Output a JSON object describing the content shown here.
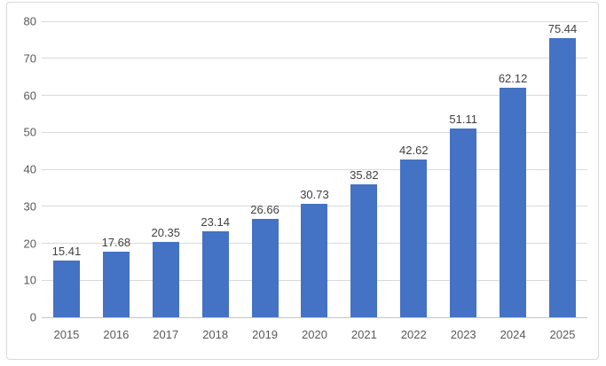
{
  "chart_data": {
    "type": "bar",
    "title": "",
    "xlabel": "",
    "ylabel": "",
    "categories": [
      "2015",
      "2016",
      "2017",
      "2018",
      "2019",
      "2020",
      "2021",
      "2022",
      "2023",
      "2024",
      "2025"
    ],
    "values": [
      15.41,
      17.68,
      20.35,
      23.14,
      26.66,
      30.73,
      35.82,
      42.62,
      51.11,
      62.12,
      75.44
    ],
    "data_labels": [
      "15.41",
      "17.68",
      "20.35",
      "23.14",
      "26.66",
      "30.73",
      "35.82",
      "42.62",
      "51.11",
      "62.12",
      "75.44"
    ],
    "ylim": [
      0,
      80
    ],
    "ytick_step": 10,
    "ytick_labels": [
      "0",
      "10",
      "20",
      "30",
      "40",
      "50",
      "60",
      "70",
      "80"
    ],
    "grid": true,
    "legend": "none",
    "colors": {
      "bar": "#4472C4",
      "gridline": "#D9D9D9",
      "axis_line": "#C6C6C6",
      "data_label": "#404040",
      "tick_label": "#595959",
      "frame_border": "#D9D9D9",
      "background": "#FFFFFF"
    }
  }
}
